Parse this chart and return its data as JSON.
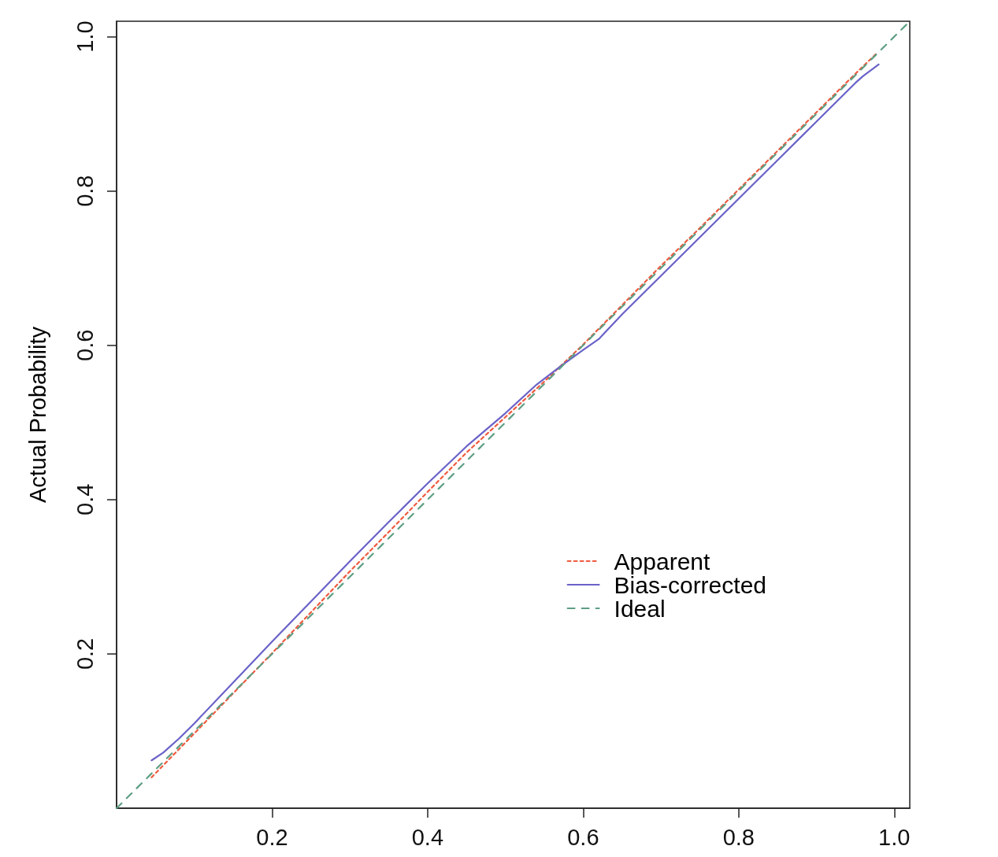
{
  "chart_data": {
    "type": "line",
    "ylabel": "Actual Probability",
    "xlim": [
      0,
      1.02
    ],
    "ylim": [
      0,
      1.02
    ],
    "xticks": [
      0.2,
      0.4,
      0.6,
      0.8,
      {
        "value": 1,
        "label": "1.0"
      }
    ],
    "yticks": [
      0.2,
      0.4,
      0.6,
      0.8,
      {
        "value": 1,
        "label": "1.0"
      }
    ],
    "legend": "bottom right",
    "marker": "none",
    "series": [
      {
        "name": "Apparent",
        "color": "#ef5b3f",
        "line_style": "dotted",
        "x": [
          0.045,
          0.1,
          0.15,
          0.2,
          0.25,
          0.3,
          0.35,
          0.4,
          0.45,
          0.5,
          0.55,
          0.6,
          0.65,
          0.7,
          0.75,
          0.8,
          0.85,
          0.9,
          0.95,
          0.978
        ],
        "values": [
          0.04,
          0.097,
          0.149,
          0.201,
          0.254,
          0.307,
          0.358,
          0.41,
          0.461,
          0.507,
          0.553,
          0.601,
          0.652,
          0.703,
          0.752,
          0.802,
          0.852,
          0.902,
          0.952,
          0.979
        ]
      },
      {
        "name": "Bias-corrected",
        "color": "#6a62c8",
        "line_style": "solid",
        "x": [
          0.045,
          0.06,
          0.08,
          0.1,
          0.15,
          0.2,
          0.25,
          0.3,
          0.35,
          0.4,
          0.45,
          0.5,
          0.54,
          0.57,
          0.6,
          0.62,
          0.65,
          0.7,
          0.75,
          0.8,
          0.85,
          0.9,
          0.95,
          0.96,
          0.98
        ],
        "values": [
          0.062,
          0.072,
          0.09,
          0.11,
          0.163,
          0.216,
          0.268,
          0.32,
          0.371,
          0.421,
          0.469,
          0.512,
          0.549,
          0.572,
          0.594,
          0.608,
          0.64,
          0.69,
          0.74,
          0.79,
          0.84,
          0.89,
          0.94,
          0.949,
          0.964
        ]
      },
      {
        "name": "Ideal",
        "color": "#5e9e84",
        "line_style": "dashed",
        "x": [
          0,
          1.02
        ],
        "values": [
          0,
          1.02
        ]
      }
    ]
  }
}
